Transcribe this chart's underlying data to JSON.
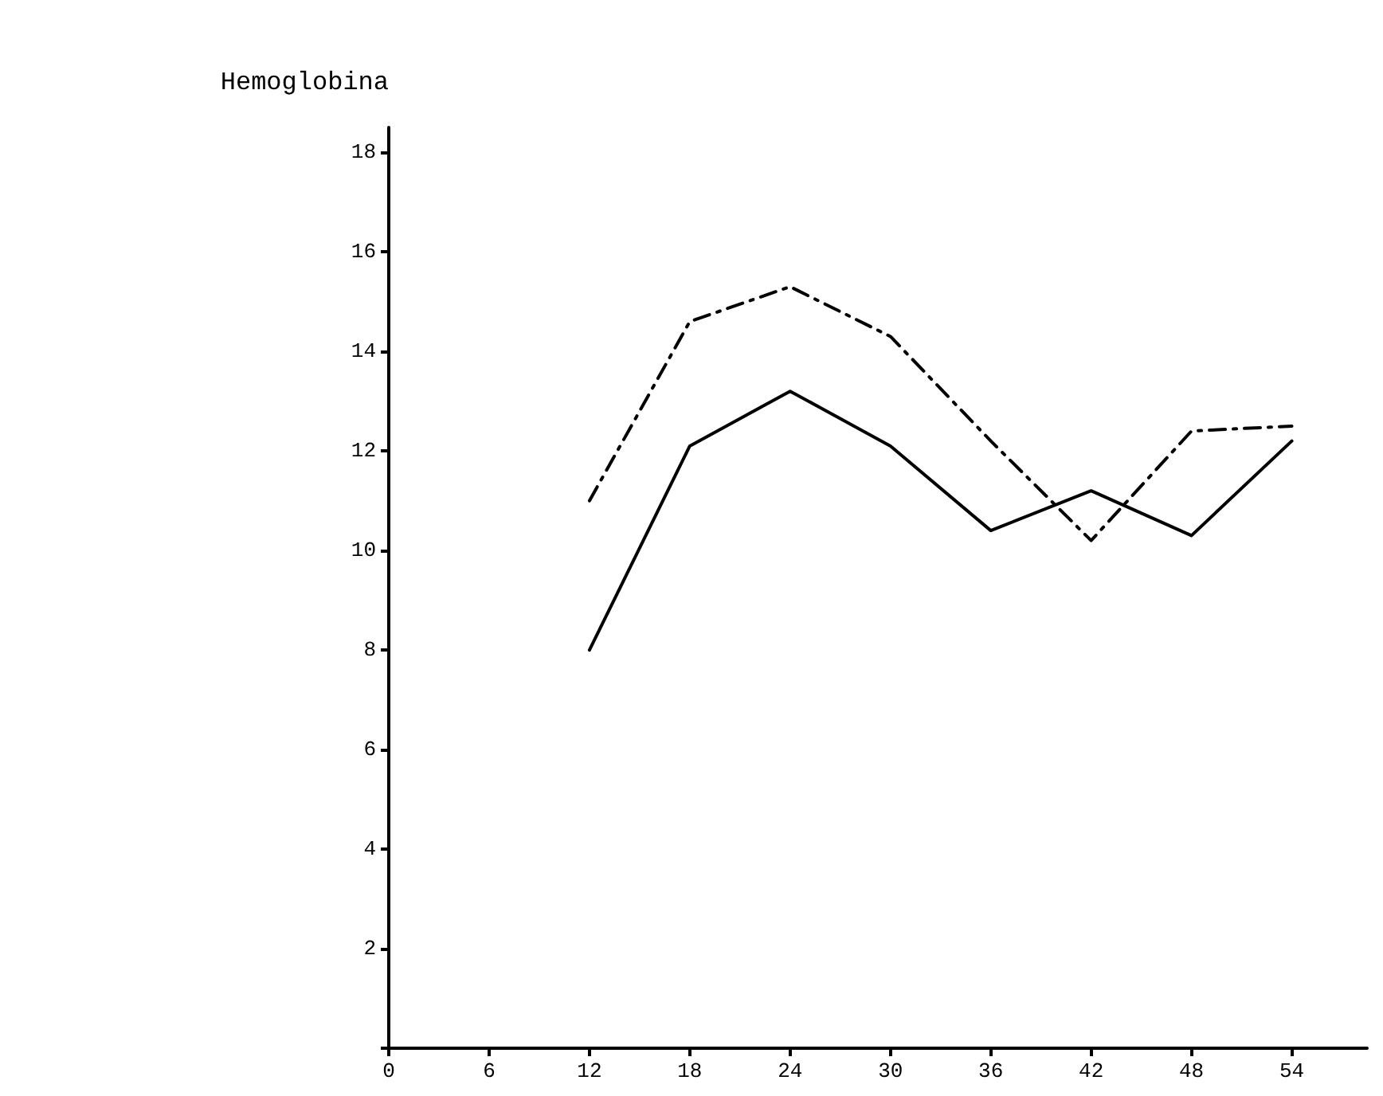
{
  "chart_data": {
    "type": "line",
    "ylabel": "Hemoglobina",
    "x": [
      12,
      18,
      24,
      30,
      36,
      42,
      48,
      54
    ],
    "series": [
      {
        "color": "#000000",
        "line_style": "solid",
        "values": [
          8.0,
          12.1,
          13.2,
          12.1,
          10.4,
          11.2,
          10.3,
          12.2
        ]
      },
      {
        "color": "#000000",
        "line_style": "dashed",
        "values": [
          11.0,
          14.6,
          15.3,
          14.3,
          12.2,
          10.2,
          12.4,
          12.5
        ]
      }
    ],
    "xlim": [
      0,
      58.5
    ],
    "xticks": [
      0,
      6,
      12,
      18,
      24,
      30,
      36,
      42,
      48,
      54
    ],
    "ylim": [
      0,
      18.5
    ],
    "yticks": [
      {
        "value": 0,
        "label": null
      },
      2,
      4,
      6,
      8,
      10,
      12,
      14,
      16,
      18
    ],
    "marker": "none"
  }
}
